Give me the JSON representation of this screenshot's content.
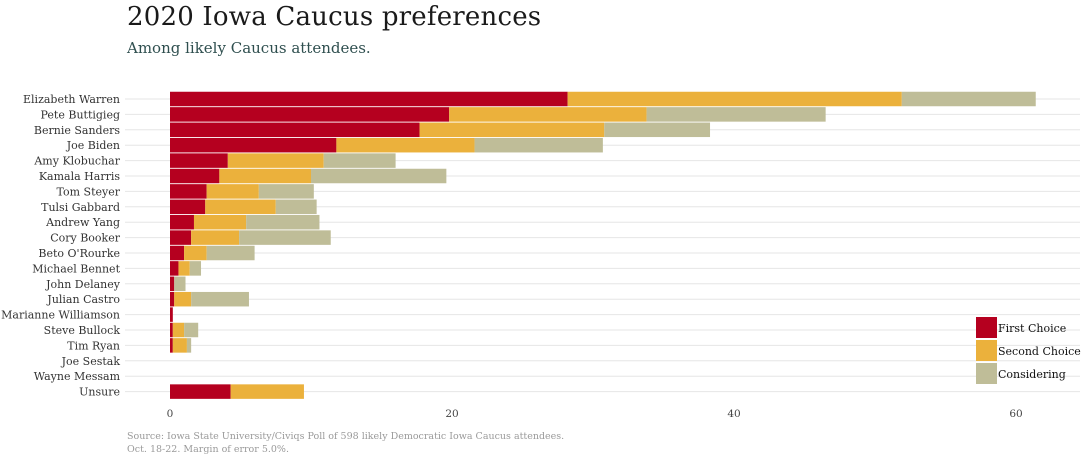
{
  "title": "2020 Iowa Caucus preferences",
  "subtitle": "Among likely Caucus attendees.",
  "caption": {
    "line1": "Source: Iowa State University/Civiqs Poll of 598 likely Democratic Iowa Caucus attendees.",
    "line2": "Oct. 18-22.  Margin of error 5.0%."
  },
  "colors": {
    "first": "#b5001f",
    "second": "#ebb13c",
    "considering": "#bfbd98",
    "grid": "#e6e6e6"
  },
  "chart_data": {
    "type": "bar",
    "orientation": "horizontal",
    "stacked": true,
    "categories": [
      "Elizabeth Warren",
      "Pete Buttigieg",
      "Bernie Sanders",
      "Joe Biden",
      "Amy Klobuchar",
      "Kamala Harris",
      "Tom Steyer",
      "Tulsi Gabbard",
      "Andrew Yang",
      "Cory Booker",
      "Beto O'Rourke",
      "Michael Bennet",
      "John Delaney",
      "Julian Castro",
      "Marianne Williamson",
      "Steve Bullock",
      "Tim Ryan",
      "Joe Sestak",
      "Wayne Messam",
      "Unsure"
    ],
    "series": [
      {
        "name": "First Choice",
        "color_key": "first",
        "values": [
          28.2,
          19.8,
          17.7,
          11.8,
          4.1,
          3.5,
          2.6,
          2.5,
          1.7,
          1.5,
          1.0,
          0.6,
          0.3,
          0.3,
          0.2,
          0.2,
          0.2,
          0,
          0,
          4.3
        ]
      },
      {
        "name": "Second Choice",
        "color_key": "second",
        "values": [
          23.7,
          14.0,
          13.1,
          9.8,
          6.8,
          6.5,
          3.7,
          5.0,
          3.7,
          3.4,
          1.6,
          0.8,
          0,
          1.2,
          0,
          0.8,
          1.0,
          0,
          0,
          5.2
        ]
      },
      {
        "name": "Considering",
        "color_key": "considering",
        "values": [
          9.5,
          12.7,
          7.5,
          9.1,
          5.1,
          9.6,
          3.9,
          2.9,
          5.2,
          6.5,
          3.4,
          0.8,
          0.8,
          4.1,
          0,
          1.0,
          0.3,
          0,
          0,
          0
        ]
      }
    ],
    "xlim": [
      -3.2,
      64.5
    ],
    "xticks": [
      "0",
      "20",
      "40",
      "60"
    ],
    "xtick_values": [
      0,
      20,
      40,
      60
    ],
    "grid": true,
    "legend_position": "bottom-right",
    "xlabel": "",
    "ylabel": ""
  }
}
